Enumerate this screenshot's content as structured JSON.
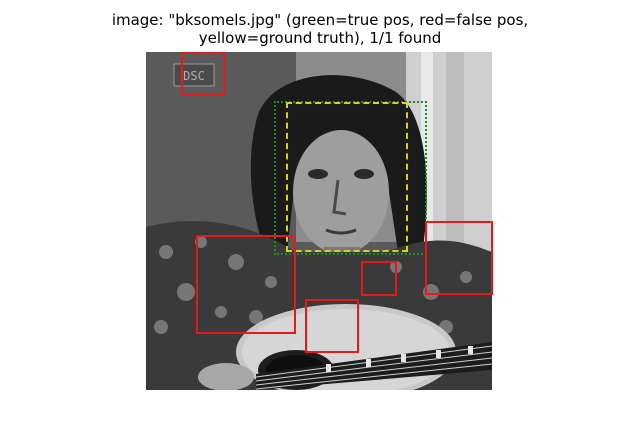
{
  "figure": {
    "title_line1": "image: \"bksomels.jpg\" (green=true pos, red=false pos,",
    "title_line2": "yellow=ground truth), 1/1 found"
  },
  "legend_colors": {
    "true_positive": "#1f8a1f",
    "false_positive": "#e41a1c",
    "ground_truth": "#d4d41e"
  },
  "photo": {
    "subject": "long-haired man with guitar",
    "watermark_text": "DSC",
    "palette": "grayscale"
  }
}
